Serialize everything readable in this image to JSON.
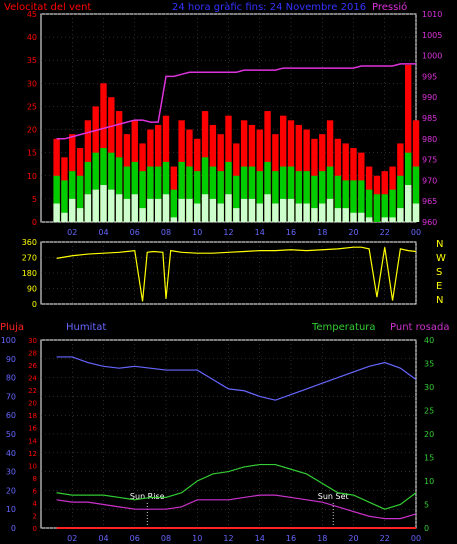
{
  "header": {
    "wind_label": "Velocitat del vent",
    "date_label": "24 hora gràfic fins: 24 Novembre 2016",
    "pressure_label": "Pressió"
  },
  "colors": {
    "wind": "#ff0000",
    "gust": "#ff0000",
    "wind_avg": "#00cc00",
    "wind_low": "#ccffcc",
    "pressure": "#dd33dd",
    "direction": "#ffff00",
    "humidity": "#6666ff",
    "temperature": "#33cc33",
    "dewpoint": "#cc33cc",
    "rain": "#ff2222",
    "axis_red": "#ff0000",
    "axis_blue": "#6666ff",
    "axis_green": "#33cc33",
    "axis_yellow": "#ffff00",
    "white": "#ffffff",
    "grid": "#555555"
  },
  "time_ticks": [
    "02",
    "04",
    "06",
    "08",
    "10",
    "12",
    "14",
    "16",
    "18",
    "20",
    "22",
    "00"
  ],
  "chart_data": [
    {
      "type": "line",
      "name": "wind_and_pressure",
      "ylabel_left": "Velocitat del vent",
      "ylabel_right": "Pressió",
      "ylim_left": [
        0,
        45
      ],
      "ylim_right": [
        960,
        1010
      ],
      "left_ticks": [
        0,
        5,
        10,
        15,
        20,
        25,
        30,
        35,
        40,
        45
      ],
      "right_ticks": [
        960,
        965,
        970,
        975,
        980,
        985,
        990,
        995,
        1000,
        1005,
        1010
      ],
      "x": [
        1,
        1.5,
        2,
        2.5,
        3,
        3.5,
        4,
        4.5,
        5,
        5.5,
        6,
        6.5,
        7,
        7.5,
        8,
        8.5,
        9,
        9.5,
        10,
        10.5,
        11,
        11.5,
        12,
        12.5,
        13,
        13.5,
        14,
        14.5,
        15,
        15.5,
        16,
        16.5,
        17,
        17.5,
        18,
        18.5,
        19,
        19.5,
        20,
        20.5,
        21,
        21.5,
        22,
        22.5,
        23,
        23.5,
        24
      ],
      "series": [
        {
          "role": "gust",
          "values": [
            18,
            14,
            19,
            16,
            22,
            25,
            30,
            27,
            24,
            19,
            22,
            17,
            20,
            21,
            23,
            12,
            22,
            20,
            18,
            24,
            21,
            19,
            23,
            17,
            22,
            21,
            20,
            24,
            19,
            23,
            22,
            21,
            20,
            18,
            19,
            22,
            18,
            17,
            16,
            15,
            12,
            10,
            11,
            12,
            17,
            34,
            22
          ]
        },
        {
          "role": "average",
          "values": [
            10,
            9,
            11,
            10,
            13,
            15,
            16,
            15,
            14,
            12,
            13,
            11,
            12,
            12,
            13,
            7,
            13,
            12,
            11,
            14,
            12,
            11,
            13,
            10,
            12,
            12,
            11,
            13,
            11,
            12,
            12,
            11,
            11,
            10,
            11,
            12,
            10,
            9,
            9,
            9,
            7,
            6,
            6,
            7,
            10,
            15,
            12
          ]
        },
        {
          "role": "low",
          "values": [
            4,
            2,
            5,
            3,
            6,
            7,
            8,
            7,
            6,
            5,
            6,
            3,
            5,
            5,
            6,
            1,
            5,
            5,
            4,
            6,
            5,
            4,
            6,
            3,
            5,
            5,
            4,
            6,
            4,
            5,
            5,
            4,
            4,
            3,
            4,
            5,
            3,
            3,
            2,
            2,
            1,
            0,
            1,
            1,
            3,
            8,
            4
          ]
        },
        {
          "role": "pressure",
          "values": [
            980,
            980,
            980.5,
            981,
            981.5,
            982,
            982.5,
            983,
            983.5,
            984,
            984.5,
            984.5,
            984,
            984,
            995,
            995,
            995.5,
            996,
            996,
            996,
            996,
            996,
            996,
            996,
            996.5,
            996.5,
            996.5,
            996.5,
            996.5,
            997,
            997,
            997,
            997,
            997,
            997,
            997,
            997,
            997,
            997,
            997.5,
            997.5,
            997.5,
            997.5,
            997.5,
            998,
            998,
            998
          ]
        }
      ]
    },
    {
      "type": "line",
      "name": "wind_direction",
      "ylim": [
        0,
        360
      ],
      "left_ticks": [
        0,
        90,
        180,
        270,
        360
      ],
      "right_labels": [
        "N",
        "W",
        "S",
        "E",
        "N"
      ],
      "x": [
        1,
        2,
        3,
        4,
        5,
        6,
        6.5,
        6.8,
        7.2,
        7.8,
        8,
        8.3,
        9,
        10,
        11,
        12,
        13,
        14,
        15,
        16,
        17,
        18,
        19,
        20,
        20.5,
        21,
        21.5,
        22,
        22.5,
        23,
        23.5,
        24
      ],
      "values": [
        265,
        280,
        290,
        295,
        300,
        310,
        15,
        300,
        305,
        300,
        30,
        310,
        300,
        295,
        295,
        300,
        305,
        310,
        310,
        315,
        310,
        315,
        320,
        330,
        330,
        320,
        40,
        330,
        20,
        320,
        310,
        305
      ]
    },
    {
      "type": "line",
      "name": "climate",
      "labels": {
        "rain": "Pluja",
        "humidity": "Humitat",
        "temperature": "Temperatura",
        "dewpoint": "Punt rosada"
      },
      "humidity_axis": {
        "ylim": [
          0,
          100
        ],
        "ticks": [
          0,
          10,
          20,
          30,
          40,
          50,
          60,
          70,
          80,
          90,
          100
        ]
      },
      "rain_axis": {
        "ylim": [
          0,
          30
        ],
        "ticks": [
          0,
          2,
          4,
          6,
          8,
          10,
          12,
          14,
          16,
          18,
          20,
          22,
          24,
          26,
          28,
          30
        ]
      },
      "temp_axis": {
        "ylim": [
          0,
          40
        ],
        "ticks": [
          0,
          5,
          10,
          15,
          20,
          25,
          30,
          35,
          40
        ]
      },
      "annotations": [
        {
          "text": "Sun Rise",
          "x": 6.8
        },
        {
          "text": "Sun Set",
          "x": 18.7
        }
      ],
      "x": [
        1,
        2,
        3,
        4,
        5,
        6,
        7,
        8,
        9,
        10,
        11,
        12,
        13,
        14,
        15,
        16,
        17,
        18,
        19,
        20,
        21,
        22,
        23,
        24
      ],
      "series": [
        {
          "role": "humidity",
          "values": [
            91,
            91,
            88,
            86,
            85,
            86,
            85,
            84,
            84,
            84,
            79,
            74,
            73,
            70,
            68,
            71,
            74,
            77,
            80,
            83,
            86,
            88,
            85,
            79
          ]
        },
        {
          "role": "temperature",
          "values": [
            7.5,
            7,
            7,
            7,
            6.5,
            6,
            6.5,
            6.5,
            7.5,
            10,
            11.5,
            12,
            13,
            13.5,
            13.5,
            12.5,
            11.5,
            9.5,
            7.5,
            7,
            5.5,
            4,
            5,
            7.5
          ]
        },
        {
          "role": "dewpoint",
          "values": [
            6,
            5.5,
            5.5,
            5,
            4.5,
            4,
            4,
            4,
            4.5,
            6,
            6,
            6,
            6.5,
            7,
            7,
            6.5,
            6,
            5.5,
            4.5,
            3.5,
            2.5,
            2,
            2,
            3
          ]
        },
        {
          "role": "rain",
          "values": [
            0,
            0,
            0,
            0,
            0,
            0,
            0,
            0,
            0,
            0,
            0,
            0,
            0,
            0,
            0,
            0,
            0,
            0,
            0,
            0,
            0,
            0,
            0,
            0
          ]
        }
      ]
    }
  ]
}
